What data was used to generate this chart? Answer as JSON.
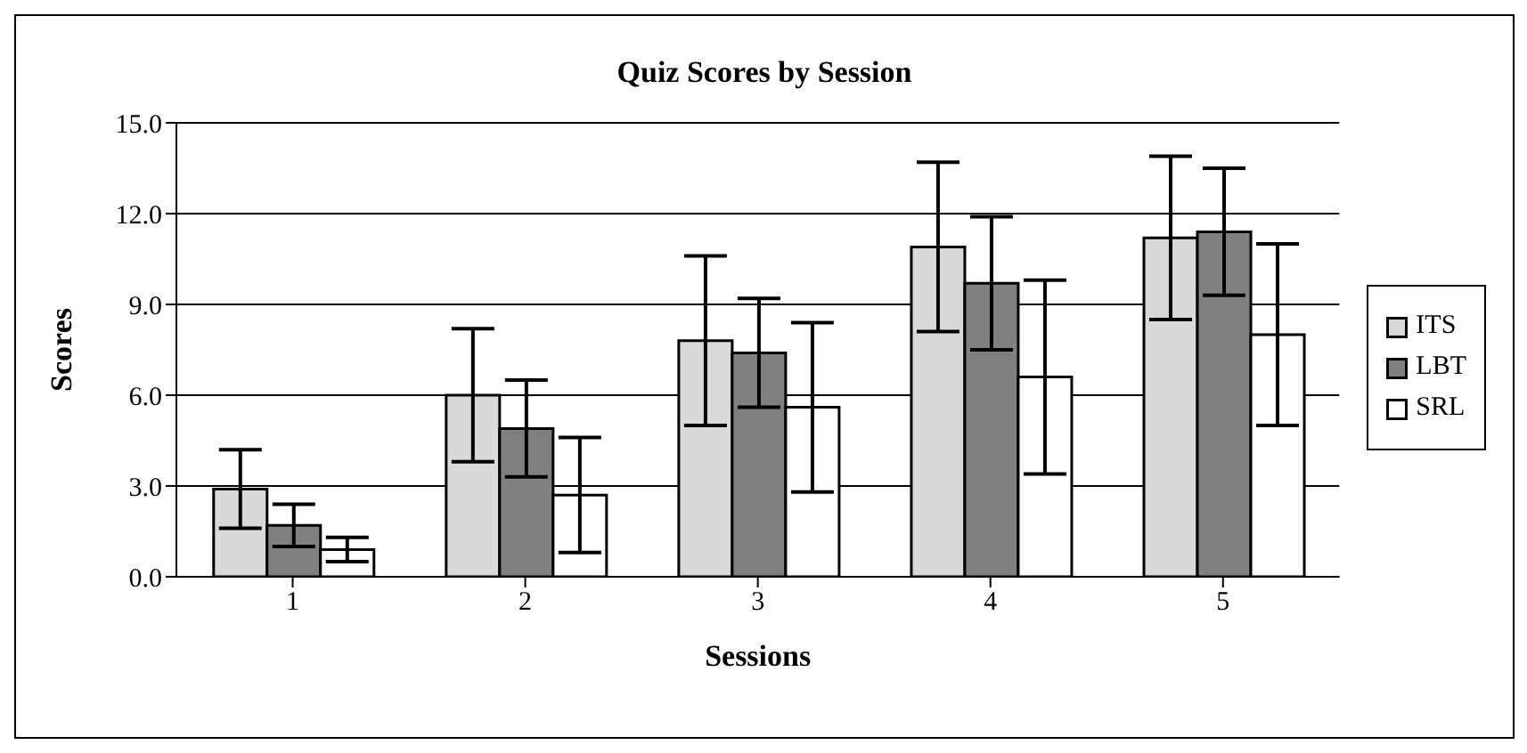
{
  "chart_data": {
    "type": "bar",
    "title": "Quiz Scores by Session",
    "xlabel": "Sessions",
    "ylabel": "Scores",
    "categories": [
      "1",
      "2",
      "3",
      "4",
      "5"
    ],
    "series": [
      {
        "name": "ITS",
        "color": "#d9d9d9",
        "values": [
          2.9,
          6.0,
          7.8,
          10.9,
          11.2
        ],
        "errors": [
          1.3,
          2.2,
          2.8,
          2.8,
          2.7
        ]
      },
      {
        "name": "LBT",
        "color": "#808080",
        "values": [
          1.7,
          4.9,
          7.4,
          9.7,
          11.4
        ],
        "errors": [
          0.7,
          1.6,
          1.8,
          2.2,
          2.1
        ]
      },
      {
        "name": "SRL",
        "color": "#ffffff",
        "values": [
          0.9,
          2.7,
          5.6,
          6.6,
          8.0
        ],
        "errors": [
          0.4,
          1.9,
          2.8,
          3.2,
          3.0
        ]
      }
    ],
    "ylim": [
      0,
      15
    ],
    "yticks": [
      {
        "value": 0,
        "label": "0.0"
      },
      {
        "value": 3,
        "label": "3.0"
      },
      {
        "value": 6,
        "label": "6.0"
      },
      {
        "value": 9,
        "label": "9.0"
      },
      {
        "value": 12,
        "label": "12.0"
      },
      {
        "value": 15,
        "label": "15.0"
      }
    ],
    "grid": "y",
    "legend": "right"
  }
}
